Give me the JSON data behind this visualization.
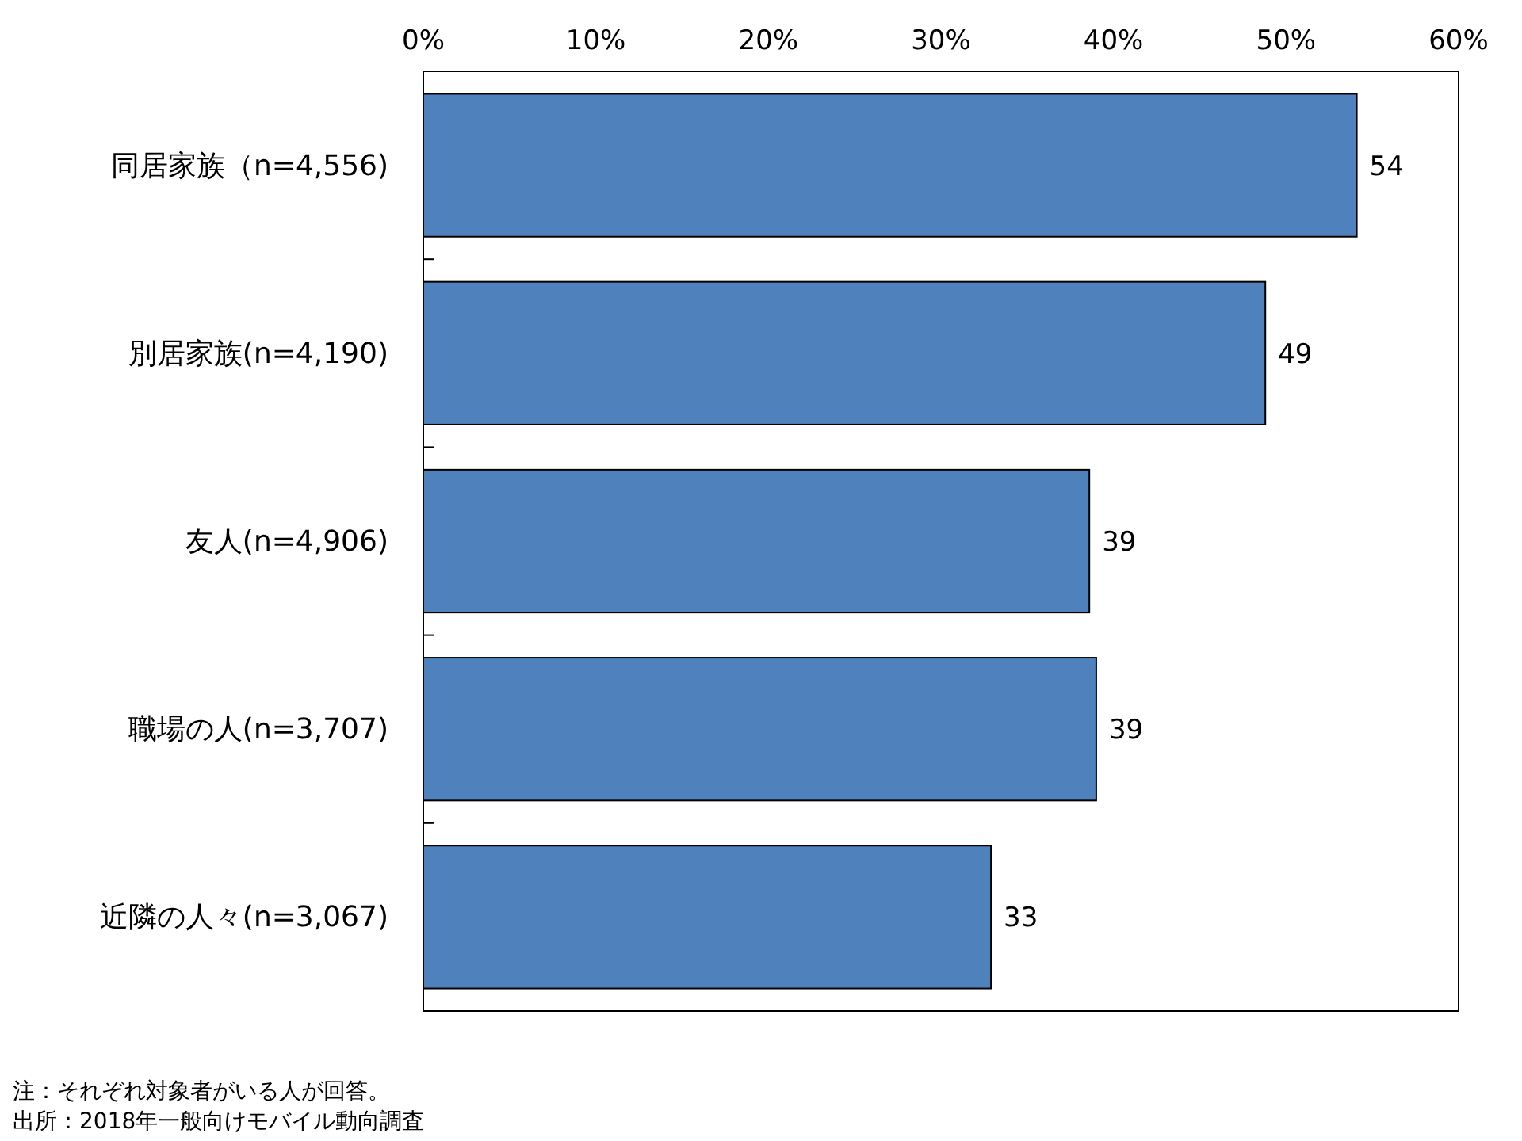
{
  "chart_data": {
    "type": "bar",
    "orientation": "horizontal",
    "categories": [
      "同居家族（n=4,556)",
      "別居家族(n=4,190)",
      "友人(n=4,906)",
      "職場の人(n=3,707)",
      "近隣の人々(n=3,067)"
    ],
    "values": [
      54.1,
      48.8,
      38.6,
      39.0,
      32.9
    ],
    "value_labels": [
      "54",
      "49",
      "39",
      "39",
      "33"
    ],
    "color": "#4f81bd",
    "xlim": [
      0,
      60
    ],
    "xticks": [
      {
        "value": 0,
        "label": "0%"
      },
      {
        "value": 10,
        "label": "10%"
      },
      {
        "value": 20,
        "label": "20%"
      },
      {
        "value": 30,
        "label": "30%"
      },
      {
        "value": 40,
        "label": "40%"
      },
      {
        "value": 50,
        "label": "50%"
      },
      {
        "value": 60,
        "label": "60%"
      }
    ],
    "annotations": [
      "注：それぞれ対象者がいる人が回答。",
      "出所：2018年一般向けモバイル動向調査"
    ]
  }
}
